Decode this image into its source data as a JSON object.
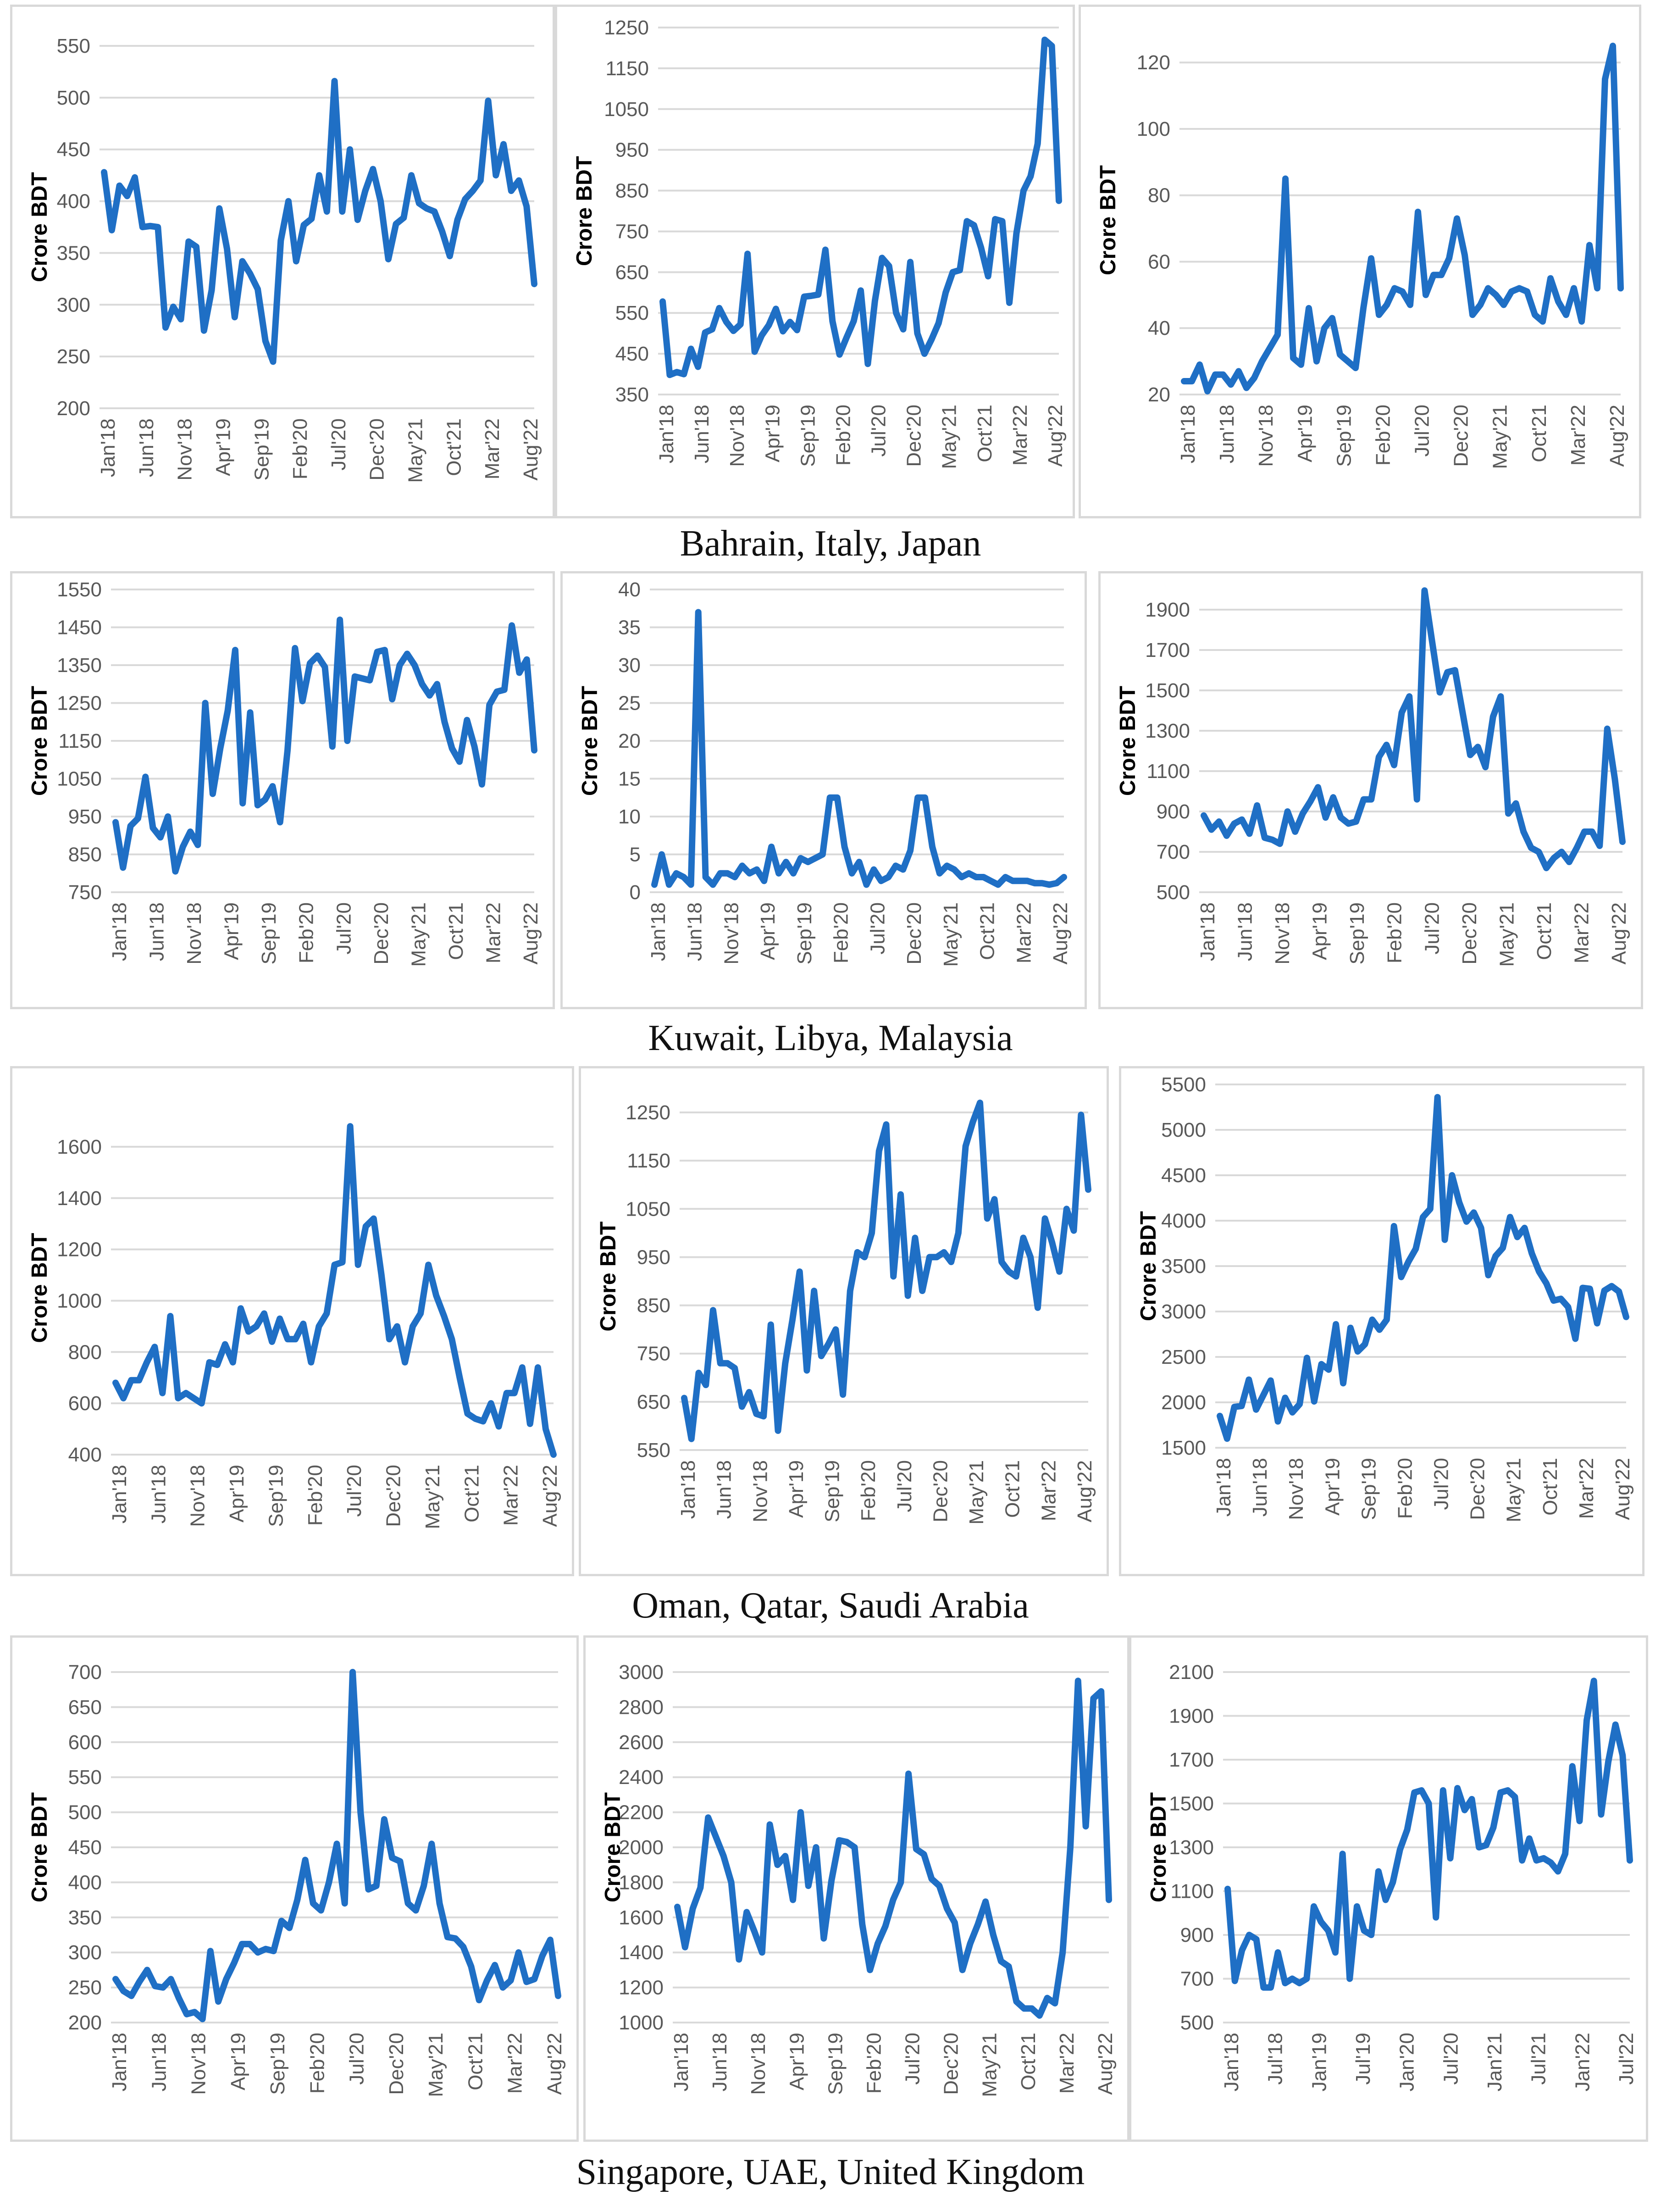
{
  "style": {
    "line_color": "#1f6fc5",
    "grid_color": "#d9d9d9",
    "tick_color": "#595959"
  },
  "captions": [
    "Bahrain, Italy, Japan",
    "Kuwait, Libya, Malaysia",
    "Oman, Qatar, Saudi Arabia",
    "Singapore, UAE, United Kingdom"
  ],
  "chart_data": [
    {
      "type": "line",
      "ylabel": "Crore BDT",
      "ylim": [
        200,
        550
      ],
      "yticks": [
        200,
        250,
        300,
        350,
        400,
        450,
        500,
        550
      ],
      "xticks": [
        "Jan'18",
        "Jun'18",
        "Nov'18",
        "Apr'19",
        "Sep'19",
        "Feb'20",
        "Jul'20",
        "Dec'20",
        "May'21",
        "Oct'21",
        "Mar'22",
        "Aug'22"
      ],
      "values": [
        428,
        372,
        415,
        405,
        423,
        375,
        376,
        375,
        278,
        298,
        286,
        361,
        356,
        275,
        314,
        393,
        354,
        288,
        342,
        330,
        315,
        265,
        245,
        362,
        400,
        342,
        377,
        383,
        425,
        390,
        516,
        390,
        450,
        382,
        410,
        431,
        400,
        344,
        378,
        384,
        425,
        398,
        393,
        390,
        371,
        347,
        382,
        402,
        410,
        420,
        497,
        425,
        455,
        410,
        420,
        395,
        320
      ]
    },
    {
      "type": "line",
      "ylabel": "Crore BDT",
      "ylim": [
        350,
        1250
      ],
      "yticks": [
        350,
        450,
        550,
        650,
        750,
        850,
        950,
        1050,
        1150,
        1250
      ],
      "xticks": [
        "Jan'18",
        "Jun'18",
        "Nov'18",
        "Apr'19",
        "Sep'19",
        "Feb'20",
        "Jul'20",
        "Dec'20",
        "May'21",
        "Oct'21",
        "Mar'22",
        "Aug'22"
      ],
      "values": [
        578,
        398,
        405,
        400,
        462,
        418,
        502,
        510,
        562,
        528,
        506,
        522,
        695,
        455,
        495,
        520,
        560,
        505,
        528,
        508,
        590,
        592,
        595,
        705,
        530,
        448,
        490,
        530,
        605,
        425,
        580,
        685,
        665,
        550,
        510,
        675,
        500,
        450,
        485,
        525,
        600,
        650,
        655,
        775,
        765,
        710,
        640,
        780,
        775,
        575,
        745,
        850,
        885,
        965,
        1220,
        1205,
        825
      ]
    },
    {
      "type": "line",
      "ylabel": "Crore BDT",
      "ylim": [
        20,
        125
      ],
      "yticks": [
        20,
        40,
        60,
        80,
        100,
        120
      ],
      "xticks": [
        "Jan'18",
        "Jun'18",
        "Nov'18",
        "Apr'19",
        "Sep'19",
        "Feb'20",
        "Jul'20",
        "Dec'20",
        "May'21",
        "Oct'21",
        "Mar'22",
        "Aug'22"
      ],
      "values": [
        24,
        24,
        29,
        21,
        26,
        26,
        23,
        27,
        22,
        25,
        30,
        34,
        38,
        85,
        31,
        29,
        46,
        30,
        40,
        43,
        32,
        30,
        28,
        46,
        61,
        44,
        47,
        52,
        51,
        47,
        75,
        50,
        56,
        56,
        61,
        73,
        62,
        44,
        47,
        52,
        50,
        47,
        51,
        52,
        51,
        44,
        42,
        55,
        48,
        44,
        52,
        42,
        65,
        52,
        115,
        125,
        52
      ]
    },
    {
      "type": "line",
      "ylabel": "Crore BDT",
      "ylim": [
        750,
        1550
      ],
      "yticks": [
        750,
        850,
        950,
        1050,
        1150,
        1250,
        1350,
        1450,
        1550
      ],
      "xticks": [
        "Jan'18",
        "Jun'18",
        "Nov'18",
        "Apr'19",
        "Sep'19",
        "Feb'20",
        "Jul'20",
        "Dec'20",
        "May'21",
        "Oct'21",
        "Mar'22",
        "Aug'22"
      ],
      "values": [
        935,
        815,
        925,
        945,
        1055,
        920,
        895,
        950,
        805,
        870,
        910,
        875,
        1250,
        1010,
        1130,
        1230,
        1390,
        985,
        1225,
        980,
        995,
        1030,
        935,
        1125,
        1395,
        1255,
        1355,
        1375,
        1345,
        1135,
        1470,
        1150,
        1320,
        1315,
        1310,
        1385,
        1390,
        1260,
        1350,
        1380,
        1350,
        1300,
        1270,
        1300,
        1200,
        1130,
        1095,
        1205,
        1135,
        1035,
        1245,
        1280,
        1285,
        1455,
        1330,
        1365,
        1125
      ]
    },
    {
      "type": "line",
      "ylabel": "Crore BDT",
      "ylim": [
        0,
        40
      ],
      "yticks": [
        0,
        5,
        10,
        15,
        20,
        25,
        30,
        35,
        40
      ],
      "xticks": [
        "Jan'18",
        "Jun'18",
        "Nov'18",
        "Apr'19",
        "Sep'19",
        "Feb'20",
        "Jul'20",
        "Dec'20",
        "May'21",
        "Oct'21",
        "Mar'22",
        "Aug'22"
      ],
      "values": [
        1,
        5,
        1,
        2.5,
        2,
        1,
        37,
        2,
        1,
        2.5,
        2.5,
        2,
        3.5,
        2.5,
        3,
        1.5,
        6,
        2.5,
        4,
        2.5,
        4.5,
        4,
        4.5,
        5,
        12.5,
        12.5,
        6,
        2.5,
        4,
        1,
        3,
        1.5,
        2,
        3.5,
        3,
        5.5,
        12.5,
        12.5,
        6,
        2.5,
        3.5,
        3,
        2,
        2.5,
        2,
        2,
        1.5,
        1,
        2,
        1.5,
        1.5,
        1.5,
        1.2,
        1.2,
        1,
        1.2,
        2
      ]
    },
    {
      "type": "line",
      "ylabel": "Crore BDT",
      "ylim": [
        500,
        2000
      ],
      "yticks": [
        500,
        700,
        900,
        1100,
        1300,
        1500,
        1700,
        1900
      ],
      "xticks": [
        "Jan'18",
        "Jun'18",
        "Nov'18",
        "Apr'19",
        "Sep'19",
        "Feb'20",
        "Jul'20",
        "Dec'20",
        "May'21",
        "Oct'21",
        "Mar'22",
        "Aug'22"
      ],
      "values": [
        880,
        810,
        850,
        780,
        840,
        860,
        790,
        930,
        770,
        760,
        740,
        900,
        800,
        890,
        950,
        1020,
        870,
        970,
        870,
        840,
        850,
        960,
        960,
        1170,
        1230,
        1130,
        1390,
        1470,
        960,
        1995,
        1740,
        1490,
        1590,
        1600,
        1390,
        1180,
        1220,
        1120,
        1370,
        1470,
        890,
        940,
        800,
        720,
        700,
        620,
        670,
        700,
        650,
        720,
        800,
        800,
        730,
        1310,
        1060,
        750
      ]
    },
    {
      "type": "line",
      "ylabel": "Crore BDT",
      "ylim": [
        400,
        1700
      ],
      "yticks": [
        400,
        600,
        800,
        1000,
        1200,
        1400,
        1600
      ],
      "xticks": [
        "Jan'18",
        "Jun'18",
        "Nov'18",
        "Apr'19",
        "Sep'19",
        "Feb'20",
        "Jul'20",
        "Dec'20",
        "May'21",
        "Oct'21",
        "Mar'22",
        "Aug'22"
      ],
      "values": [
        680,
        620,
        690,
        690,
        760,
        820,
        640,
        940,
        620,
        640,
        620,
        600,
        760,
        750,
        830,
        760,
        970,
        880,
        900,
        950,
        840,
        930,
        850,
        850,
        910,
        760,
        900,
        950,
        1140,
        1150,
        1680,
        1140,
        1290,
        1320,
        1100,
        850,
        900,
        760,
        900,
        950,
        1140,
        1020,
        940,
        850,
        700,
        560,
        540,
        530,
        600,
        510,
        640,
        640,
        740,
        520,
        740,
        500,
        400
      ]
    },
    {
      "type": "line",
      "ylabel": "Crore BDT",
      "ylim": [
        550,
        1270
      ],
      "yticks": [
        550,
        650,
        750,
        850,
        950,
        1050,
        1150,
        1250
      ],
      "xticks": [
        "Jan'18",
        "Jun'18",
        "Nov'18",
        "Apr'19",
        "Sep'19",
        "Feb'20",
        "Jul'20",
        "Dec'20",
        "May'21",
        "Oct'21",
        "Mar'22",
        "Aug'22"
      ],
      "values": [
        658,
        573,
        710,
        685,
        840,
        730,
        730,
        720,
        640,
        670,
        625,
        620,
        810,
        590,
        730,
        820,
        920,
        715,
        880,
        745,
        770,
        800,
        665,
        880,
        960,
        950,
        1000,
        1170,
        1225,
        910,
        1080,
        870,
        990,
        880,
        950,
        950,
        960,
        940,
        1000,
        1180,
        1230,
        1270,
        1030,
        1070,
        940,
        920,
        910,
        990,
        950,
        845,
        1030,
        980,
        920,
        1050,
        1005,
        1245,
        1090
      ]
    },
    {
      "type": "line",
      "ylabel": "Crore BDT",
      "ylim": [
        1500,
        5500
      ],
      "yticks": [
        1500,
        2000,
        2500,
        3000,
        3500,
        4000,
        4500,
        5000,
        5500
      ],
      "xticks": [
        "Jan'18",
        "Jun'18",
        "Nov'18",
        "Apr'19",
        "Sep'19",
        "Feb'20",
        "Jul'20",
        "Dec'20",
        "May'21",
        "Oct'21",
        "Mar'22",
        "Aug'22"
      ],
      "values": [
        1850,
        1600,
        1950,
        1960,
        2250,
        1920,
        2080,
        2240,
        1790,
        2050,
        1890,
        1980,
        2490,
        2010,
        2420,
        2360,
        2860,
        2210,
        2820,
        2560,
        2640,
        2910,
        2800,
        2910,
        3940,
        3380,
        3550,
        3690,
        4040,
        4130,
        5360,
        3790,
        4500,
        4200,
        3990,
        4090,
        3920,
        3400,
        3610,
        3700,
        4040,
        3820,
        3920,
        3640,
        3440,
        3310,
        3120,
        3140,
        3050,
        2700,
        3260,
        3250,
        2870,
        3230,
        3280,
        3220,
        2940
      ]
    },
    {
      "type": "line",
      "ylabel": "Crore BDT",
      "ylim": [
        200,
        700
      ],
      "yticks": [
        200,
        250,
        300,
        350,
        400,
        450,
        500,
        550,
        600,
        650,
        700
      ],
      "xticks": [
        "Jan'18",
        "Jun'18",
        "Nov'18",
        "Apr'19",
        "Sep'19",
        "Feb'20",
        "Jul'20",
        "Dec'20",
        "May'21",
        "Oct'21",
        "Mar'22",
        "Aug'22"
      ],
      "values": [
        262,
        245,
        238,
        258,
        275,
        252,
        250,
        262,
        235,
        212,
        215,
        205,
        302,
        230,
        262,
        285,
        312,
        312,
        300,
        305,
        302,
        345,
        335,
        375,
        432,
        370,
        360,
        400,
        455,
        370,
        700,
        500,
        390,
        395,
        490,
        435,
        430,
        370,
        360,
        395,
        455,
        370,
        322,
        320,
        308,
        280,
        232,
        260,
        282,
        250,
        260,
        300,
        258,
        262,
        295,
        318,
        238
      ]
    },
    {
      "type": "line",
      "ylabel": "Crore BDT",
      "ylim": [
        1000,
        3000
      ],
      "yticks": [
        1000,
        1200,
        1400,
        1600,
        1800,
        2000,
        2200,
        2400,
        2600,
        2800,
        3000
      ],
      "xticks": [
        "Jan'18",
        "Jun'18",
        "Nov'18",
        "Apr'19",
        "Sep'19",
        "Feb'20",
        "Jul'20",
        "Dec'20",
        "May'21",
        "Oct'21",
        "Mar'22",
        "Aug'22"
      ],
      "values": [
        1660,
        1430,
        1650,
        1770,
        2170,
        2060,
        1950,
        1800,
        1360,
        1630,
        1520,
        1400,
        2130,
        1900,
        1950,
        1700,
        2200,
        1780,
        2000,
        1480,
        1810,
        2040,
        2030,
        2000,
        1560,
        1300,
        1450,
        1550,
        1700,
        1800,
        2420,
        1990,
        1960,
        1820,
        1780,
        1650,
        1570,
        1300,
        1450,
        1560,
        1690,
        1500,
        1350,
        1320,
        1120,
        1080,
        1080,
        1040,
        1140,
        1110,
        1400,
        2000,
        2950,
        2120,
        2850,
        2890,
        1700
      ]
    },
    {
      "type": "line",
      "ylabel": "Crore BDT",
      "ylim": [
        500,
        2100
      ],
      "yticks": [
        500,
        700,
        900,
        1100,
        1300,
        1500,
        1700,
        1900,
        2100
      ],
      "xticks": [
        "Jan'18",
        "Jul'18",
        "Jan'19",
        "Jul'19",
        "Jan'20",
        "Jul'20",
        "Jan'21",
        "Jul'21",
        "Jan'22",
        "Jul'22"
      ],
      "values": [
        1110,
        690,
        830,
        900,
        880,
        660,
        660,
        820,
        680,
        700,
        680,
        700,
        1030,
        960,
        920,
        820,
        1270,
        700,
        1030,
        920,
        900,
        1190,
        1060,
        1140,
        1290,
        1380,
        1550,
        1560,
        1500,
        980,
        1560,
        1250,
        1570,
        1470,
        1520,
        1300,
        1310,
        1390,
        1550,
        1560,
        1530,
        1240,
        1340,
        1240,
        1250,
        1230,
        1190,
        1270,
        1670,
        1420,
        1880,
        2060,
        1450,
        1690,
        1860,
        1720,
        1240
      ]
    }
  ]
}
